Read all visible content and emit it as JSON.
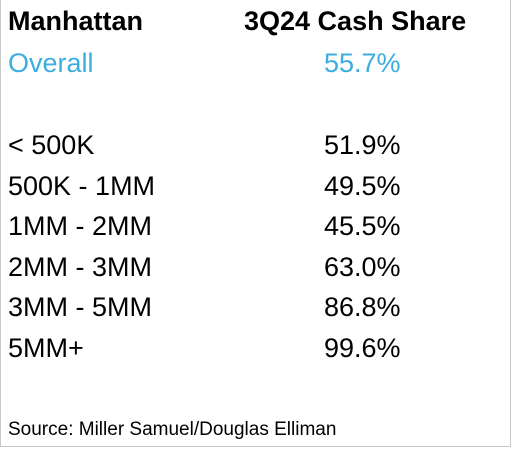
{
  "colors": {
    "overall": "#3aaee0",
    "text": "#000000"
  },
  "header": {
    "left": "Manhattan",
    "right": "3Q24 Cash Share"
  },
  "overall": {
    "label": "Overall",
    "value": "55.7%"
  },
  "source": "Source: Miller Samuel/Douglas Elliman",
  "chart_data": {
    "type": "table",
    "title": "",
    "columns": [
      "Manhattan",
      "3Q24 Cash Share"
    ],
    "overall": {
      "label": "Overall",
      "value": "55.7%"
    },
    "rows": [
      {
        "label": "< 500K",
        "value": "51.9%"
      },
      {
        "label": "500K - 1MM",
        "value": "49.5%"
      },
      {
        "label": "1MM - 2MM",
        "value": "45.5%"
      },
      {
        "label": "2MM - 3MM",
        "value": "63.0%"
      },
      {
        "label": "3MM - 5MM",
        "value": "86.8%"
      },
      {
        "label": "5MM+",
        "value": "99.6%"
      }
    ]
  }
}
